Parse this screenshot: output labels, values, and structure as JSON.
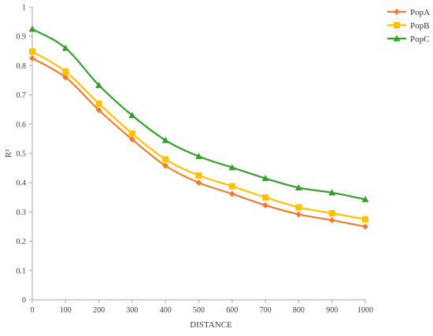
{
  "chart_data": {
    "type": "line",
    "title": "",
    "xlabel": "DISTANCE",
    "ylabel": "R²",
    "x": [
      0,
      100,
      200,
      300,
      400,
      500,
      600,
      700,
      800,
      900,
      1000
    ],
    "xlim": [
      0,
      1000
    ],
    "ylim": [
      0,
      1
    ],
    "y_ticks": [
      "0",
      "0.1",
      "0.2",
      "0.3",
      "0.4",
      "0.5",
      "0.6",
      "0.7",
      "0.8",
      "0.9",
      "1"
    ],
    "x_ticks": [
      "0",
      "100",
      "200",
      "300",
      "400",
      "500",
      "600",
      "700",
      "800",
      "900",
      "1000"
    ],
    "grid": false,
    "legend_position": "top-right",
    "series": [
      {
        "name": "PopA",
        "color": "#ED7D31",
        "marker": "diamond",
        "values": [
          0.825,
          0.76,
          0.648,
          0.548,
          0.458,
          0.4,
          0.362,
          0.323,
          0.292,
          0.272,
          0.25
        ]
      },
      {
        "name": "PopB",
        "color": "#FFC000",
        "marker": "square",
        "values": [
          0.848,
          0.78,
          0.67,
          0.568,
          0.48,
          0.425,
          0.388,
          0.35,
          0.316,
          0.296,
          0.275
        ]
      },
      {
        "name": "PopC",
        "color": "#3A9E2F",
        "marker": "triangle",
        "values": [
          0.925,
          0.86,
          0.733,
          0.63,
          0.545,
          0.49,
          0.452,
          0.415,
          0.383,
          0.366,
          0.343
        ]
      }
    ]
  }
}
